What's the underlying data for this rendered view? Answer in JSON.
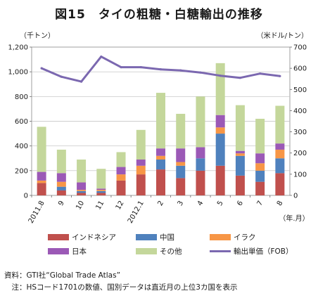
{
  "title": "図15　タイの粗糖・白糖輸出の推移",
  "left_unit": "（千トン）",
  "right_unit": "（米ドル/トン）",
  "source": "資料：GTI社“Global Trade Atlas”",
  "note": "　注：HSコード1701の数値、国別データは直近月の上位3カ国を表示",
  "chart_data": {
    "type": "bar",
    "stacked": true,
    "categories": [
      "2011.8",
      "9",
      "10",
      "11",
      "12",
      "2012.1",
      "2",
      "3",
      "4",
      "5",
      "6",
      "7",
      "8"
    ],
    "x_unit_label": "（年.月）",
    "ylim": [
      0,
      1200
    ],
    "yticks": [
      0,
      200,
      400,
      600,
      800,
      1000,
      1200
    ],
    "yticks_labels": [
      "0",
      "200",
      "400",
      "600",
      "800",
      "1,000",
      "1,200"
    ],
    "y2lim": [
      0,
      700
    ],
    "y2ticks": [
      0,
      100,
      200,
      300,
      400,
      500,
      600,
      700
    ],
    "series": [
      {
        "name": "インドネシア",
        "color": "#c0504d",
        "values": [
          100,
          40,
          20,
          20,
          120,
          170,
          210,
          140,
          200,
          240,
          160,
          110,
          180
        ]
      },
      {
        "name": "中国",
        "color": "#4f81bd",
        "values": [
          0,
          30,
          15,
          15,
          0,
          0,
          80,
          100,
          100,
          260,
          160,
          90,
          120
        ]
      },
      {
        "name": "イラク",
        "color": "#f79646",
        "values": [
          20,
          40,
          10,
          10,
          50,
          70,
          30,
          30,
          0,
          50,
          20,
          60,
          70
        ]
      },
      {
        "name": "日本",
        "color": "#9b59b6",
        "values": [
          70,
          70,
          60,
          10,
          60,
          50,
          60,
          110,
          90,
          100,
          20,
          80,
          50
        ]
      },
      {
        "name": "その他",
        "color": "#c4d79b",
        "values": [
          365,
          190,
          185,
          160,
          120,
          240,
          450,
          280,
          410,
          420,
          370,
          280,
          305
        ]
      }
    ],
    "line_series": {
      "name": "輸出単価（FOB）",
      "color": "#7b68b0",
      "axis": "right",
      "values": [
        600,
        560,
        537,
        655,
        605,
        605,
        595,
        590,
        580,
        565,
        555,
        575,
        563
      ]
    },
    "legend_position": "bottom"
  }
}
